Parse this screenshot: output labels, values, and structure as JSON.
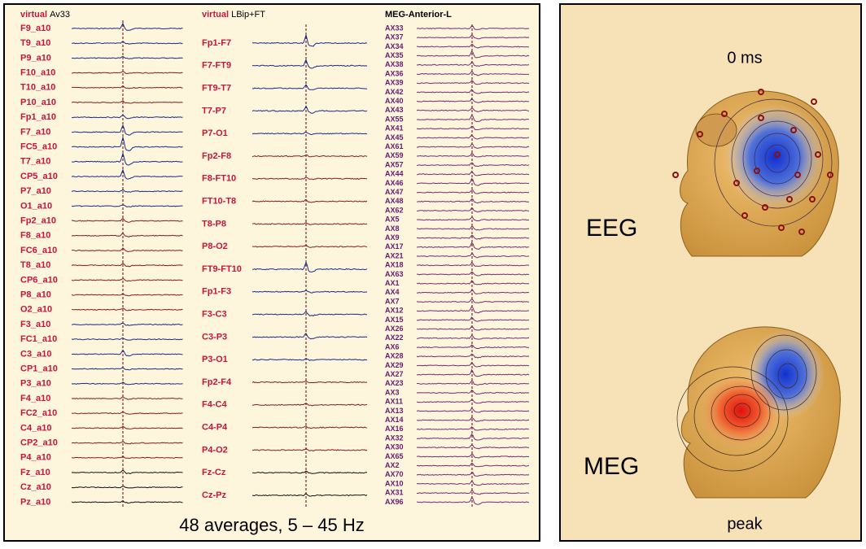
{
  "eeg_panel": {
    "left_header": {
      "prefix": "virtual",
      "name": "Av33"
    },
    "middle_header": {
      "prefix": "virtual",
      "name": "LBip+FT"
    },
    "right_header": "MEG-Anterior-L",
    "left_channels": [
      "F9_a10",
      "T9_a10",
      "P9_a10",
      "F10_a10",
      "T10_a10",
      "P10_a10",
      "Fp1_a10",
      "F7_a10",
      "FC5_a10",
      "T7_a10",
      "CP5_a10",
      "P7_a10",
      "O1_a10",
      "Fp2_a10",
      "F8_a10",
      "FC6_a10",
      "T8_a10",
      "CP6_a10",
      "P8_a10",
      "O2_a10",
      "F3_a10",
      "FC1_a10",
      "C3_a10",
      "CP1_a10",
      "P3_a10",
      "F4_a10",
      "FC2_a10",
      "C4_a10",
      "CP2_a10",
      "P4_a10",
      "Fz_a10",
      "Cz_a10",
      "Pz_a10"
    ],
    "middle_channels": [
      "Fp1-F7",
      "F7-FT9",
      "FT9-T7",
      "T7-P7",
      "P7-O1",
      "Fp2-F8",
      "F8-FT10",
      "FT10-T8",
      "T8-P8",
      "P8-O2",
      "FT9-FT10",
      "Fp1-F3",
      "F3-C3",
      "C3-P3",
      "P3-O1",
      "Fp2-F4",
      "F4-C4",
      "C4-P4",
      "P4-O2",
      "Fz-Cz",
      "Cz-Pz"
    ],
    "right_channels": [
      "AX33",
      "AX37",
      "AX34",
      "AX35",
      "AX38",
      "AX36",
      "AX39",
      "AX42",
      "AX40",
      "AX43",
      "AX55",
      "AX41",
      "AX45",
      "AX61",
      "AX59",
      "AX57",
      "AX44",
      "AX46",
      "AX47",
      "AX48",
      "AX62",
      "AX5",
      "AX8",
      "AX9",
      "AX17",
      "AX21",
      "AX18",
      "AX63",
      "AX1",
      "AX4",
      "AX7",
      "AX12",
      "AX15",
      "AX26",
      "AX22",
      "AX6",
      "AX28",
      "AX29",
      "AX27",
      "AX23",
      "AX3",
      "AX11",
      "AX13",
      "AX14",
      "AX16",
      "AX32",
      "AX30",
      "AX65",
      "AX2",
      "AX70",
      "AX10",
      "AX31",
      "AX96"
    ],
    "caption": "48 averages,  5 – 45 Hz"
  },
  "map_panel": {
    "time": "0 ms",
    "eeg_label": "EEG",
    "meg_label": "MEG",
    "footer": "peak"
  }
}
